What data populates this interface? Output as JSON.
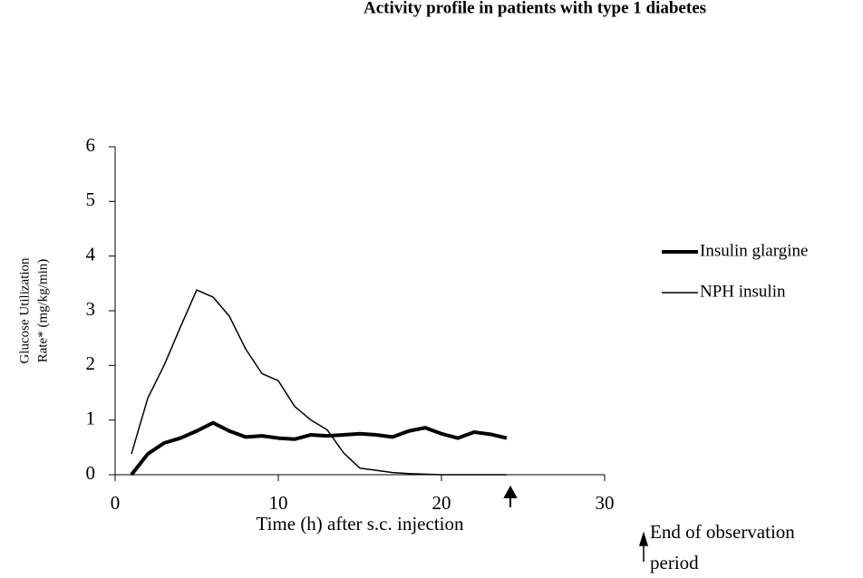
{
  "chart_data": {
    "type": "line",
    "title": "Activity profile in patients with type 1 diabetes",
    "x_label": "Time (h) after s.c. injection",
    "y_label": [
      "Glucose Utilization",
      "Rate* (mg/kg/min)"
    ],
    "annotation": [
      "End of observation",
      "period"
    ],
    "x": [
      1,
      2,
      3,
      4,
      5,
      6,
      7,
      8,
      9,
      10,
      11,
      12,
      13,
      14,
      15,
      16,
      17,
      18,
      19,
      20,
      21,
      22,
      23,
      24
    ],
    "series": [
      {
        "name": "Insulin glargine",
        "color": "#000000",
        "width": 4,
        "values": [
          0,
          0.38,
          0.58,
          0.67,
          0.8,
          0.95,
          0.8,
          0.69,
          0.71,
          0.67,
          0.65,
          0.73,
          0.71,
          0.73,
          0.75,
          0.73,
          0.69,
          0.8,
          0.86,
          0.75,
          0.67,
          0.78,
          0.74,
          0.67
        ]
      },
      {
        "name": "NPH insulin",
        "color": "#000000",
        "width": 1.5,
        "values": [
          0.38,
          1.4,
          2.0,
          2.7,
          3.38,
          3.25,
          2.9,
          2.3,
          1.85,
          1.72,
          1.25,
          1.0,
          0.82,
          0.4,
          0.12,
          0.08,
          0.04,
          0.02,
          0.01,
          0,
          0,
          0,
          0,
          0
        ]
      }
    ],
    "xlim": [
      0,
      30
    ],
    "xticks": [
      0,
      10,
      20,
      30
    ],
    "ylim": [
      0,
      6
    ],
    "yticks": [
      0,
      1,
      2,
      3,
      4,
      5,
      6
    ],
    "grid": false
  }
}
